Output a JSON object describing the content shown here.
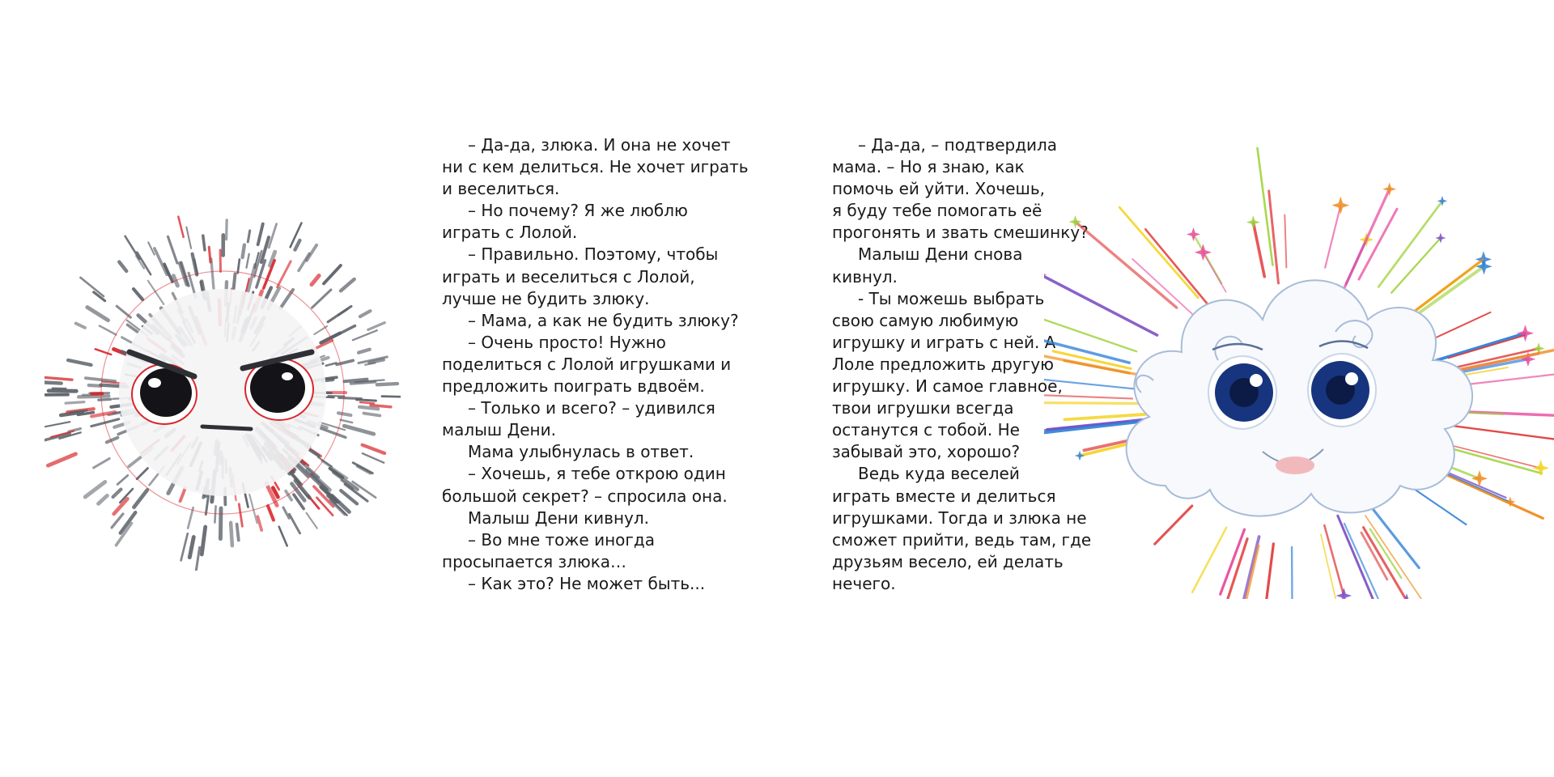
{
  "page": {
    "left_column": [
      {
        "text": "– Да-да, злюка. И она не хочет",
        "indent": true
      },
      {
        "text": "ни с кем делиться. Не хочет играть",
        "indent": false
      },
      {
        "text": "и веселиться.",
        "indent": false
      },
      {
        "text": "– Но почему? Я же люблю",
        "indent": true
      },
      {
        "text": "играть с Лолой.",
        "indent": false
      },
      {
        "text": "– Правильно. Поэтому, чтобы",
        "indent": true
      },
      {
        "text": "играть и веселиться с Лолой,",
        "indent": false
      },
      {
        "text": "лучше не будить злюку.",
        "indent": false
      },
      {
        "text": "– Мама, а как не будить злюку?",
        "indent": true
      },
      {
        "text": "– Очень просто! Нужно",
        "indent": true
      },
      {
        "text": "поделиться с Лолой игрушками и",
        "indent": false
      },
      {
        "text": "предложить поиграть вдвоём.",
        "indent": false
      },
      {
        "text": "– Только и всего? – удивился",
        "indent": true
      },
      {
        "text": "малыш Дени.",
        "indent": false
      },
      {
        "text": "Мама улыбнулась в ответ.",
        "indent": true
      },
      {
        "text": "– Хочешь, я тебе открою один",
        "indent": true
      },
      {
        "text": "большой секрет? – спросила она.",
        "indent": false
      },
      {
        "text": "Малыш Дени кивнул.",
        "indent": true
      },
      {
        "text": "– Во мне тоже иногда",
        "indent": true
      },
      {
        "text": "просыпается злюка…",
        "indent": false
      },
      {
        "text": "– Как это? Не может быть...",
        "indent": true
      }
    ],
    "right_column": [
      {
        "text": "– Да-да, – подтвердила",
        "indent": true
      },
      {
        "text": "мама. – Но я знаю, как",
        "indent": false
      },
      {
        "text": "помочь ей уйти. Хочешь,",
        "indent": false
      },
      {
        "text": "я буду тебе помогать её",
        "indent": false
      },
      {
        "text": "прогонять и звать смешинку?",
        "indent": false
      },
      {
        "text": "Малыш Дени снова",
        "indent": true
      },
      {
        "text": "кивнул.",
        "indent": false
      },
      {
        "text": "- Ты можешь выбрать",
        "indent": true
      },
      {
        "text": "свою самую любимую",
        "indent": false
      },
      {
        "text": "игрушку и играть с ней. А",
        "indent": false
      },
      {
        "text": "Лоле предложить другую",
        "indent": false
      },
      {
        "text": "игрушку. И самое главное,",
        "indent": false
      },
      {
        "text": "твои игрушки всегда",
        "indent": false
      },
      {
        "text": "останутся с тобой. Не",
        "indent": false
      },
      {
        "text": "забывай это, хорошо?",
        "indent": false
      },
      {
        "text": "Ведь куда веселей",
        "indent": true
      },
      {
        "text": "играть вместе и делиться",
        "indent": false
      },
      {
        "text": "игрушками. Тогда и злюка не",
        "indent": false
      },
      {
        "text": "сможет прийти, ведь там, где",
        "indent": false
      },
      {
        "text": "друзьям весело, ей делать",
        "indent": false
      },
      {
        "text": "нечего.",
        "indent": false
      }
    ]
  },
  "colors": {
    "background": "#ffffff",
    "text": "#1a1a1a",
    "spike_gray": "#5b6068",
    "spike_red": "#d8262b",
    "eye_navy": "#17357e",
    "cloud_outline": "#a8bcd8"
  },
  "illustrations": {
    "left": "grumpy-hedgehog-ball-illustration",
    "right": "smiling-cloud-illustration"
  }
}
